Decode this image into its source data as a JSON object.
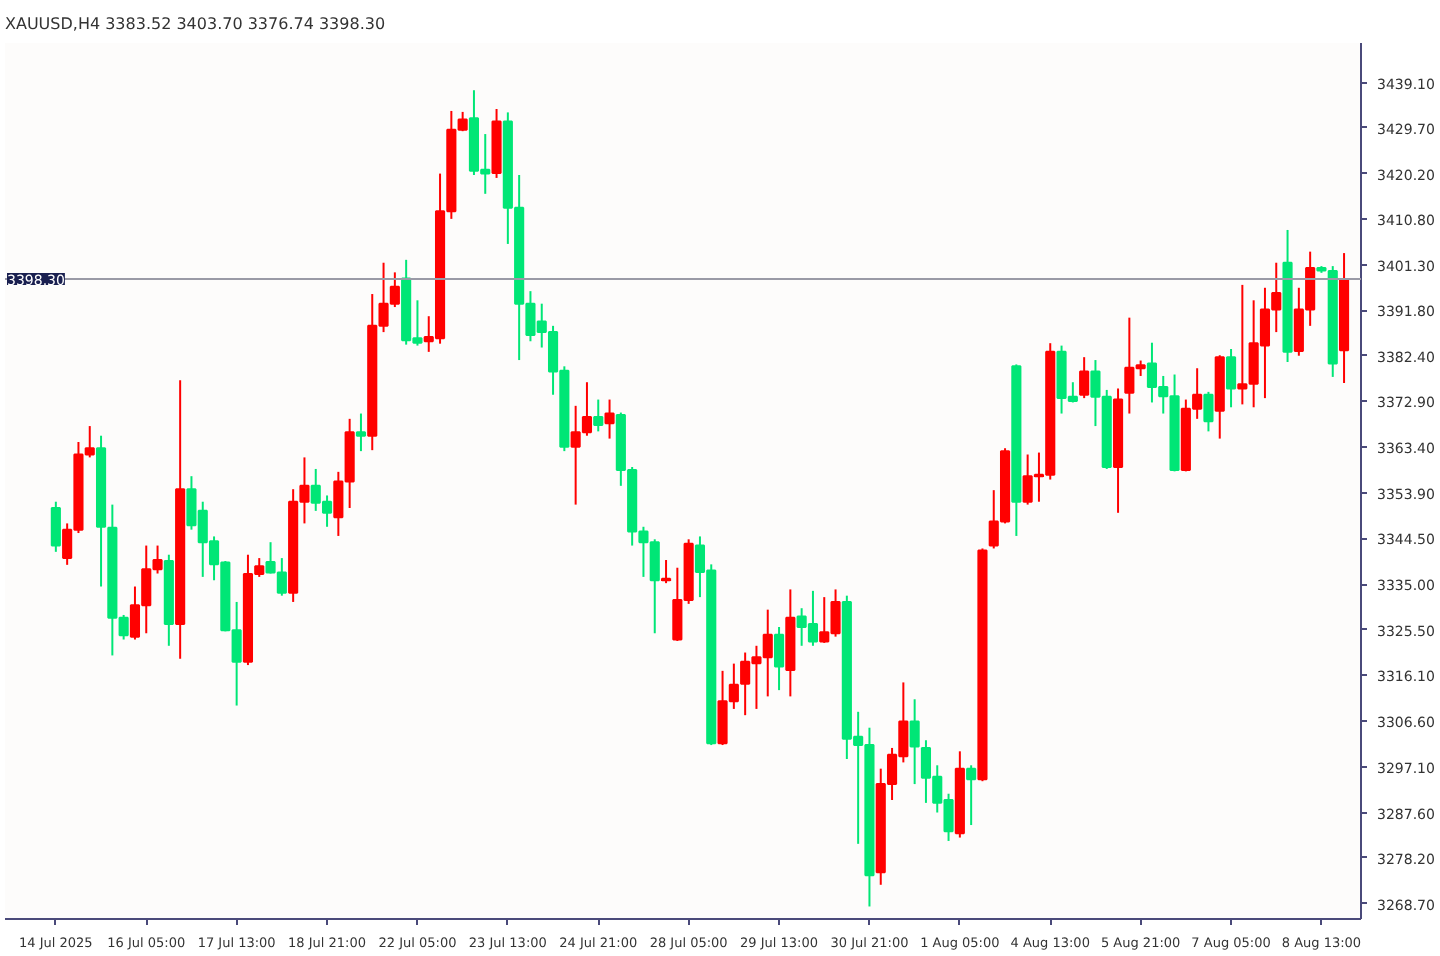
{
  "chart_data": {
    "type": "candlestick",
    "title": "XAUUSD,H4 3383.52 3403.70 3376.74 3398.30",
    "categories": [
      "14 Jul 2025",
      null,
      null,
      null,
      null,
      null,
      null,
      null,
      "16 Jul 05:00",
      null,
      null,
      null,
      null,
      null,
      null,
      null,
      "17 Jul 13:00",
      null,
      null,
      null,
      null,
      null,
      null,
      null,
      "18 Jul 21:00",
      null,
      null,
      null,
      null,
      null,
      null,
      null,
      "22 Jul 05:00",
      null,
      null,
      null,
      null,
      null,
      null,
      null,
      "23 Jul 13:00",
      null,
      null,
      null,
      null,
      null,
      null,
      null,
      "24 Jul 21:00",
      null,
      null,
      null,
      null,
      null,
      null,
      null,
      "28 Jul 05:00",
      null,
      null,
      null,
      null,
      null,
      null,
      null,
      "29 Jul 13:00",
      null,
      null,
      null,
      null,
      null,
      null,
      null,
      "30 Jul 21:00",
      null,
      null,
      null,
      null,
      null,
      null,
      null,
      "1 Aug 05:00",
      null,
      null,
      null,
      null,
      null,
      null,
      null,
      "4 Aug 13:00",
      null,
      null,
      null,
      null,
      null,
      null,
      null,
      "5 Aug 21:00",
      null,
      null,
      null,
      null,
      null,
      null,
      null,
      "7 Aug 05:00",
      null,
      null,
      null,
      null,
      null,
      null,
      null,
      "8 Aug 13:00",
      null,
      null
    ],
    "ohlc": [
      [
        3350.8,
        3352.1,
        3341.7,
        3343.0
      ],
      [
        3340.4,
        3347.6,
        3339.0,
        3346.3
      ],
      [
        3346.3,
        3364.5,
        3345.6,
        3361.9
      ],
      [
        3361.9,
        3367.8,
        3361.3,
        3363.2
      ],
      [
        3363.2,
        3365.8,
        3334.5,
        3346.9
      ],
      [
        3346.7,
        3351.5,
        3320.2,
        3328.0
      ],
      [
        3328.0,
        3328.6,
        3323.5,
        3324.4
      ],
      [
        3324.1,
        3334.5,
        3323.5,
        3330.6
      ],
      [
        3330.6,
        3343.0,
        3324.8,
        3338.1
      ],
      [
        3338.1,
        3343.0,
        3337.2,
        3340.0
      ],
      [
        3339.8,
        3341.1,
        3322.2,
        3326.7
      ],
      [
        3326.7,
        3377.3,
        3319.5,
        3354.7
      ],
      [
        3354.7,
        3357.4,
        3346.3,
        3347.2
      ],
      [
        3350.2,
        3352.1,
        3336.5,
        3343.7
      ],
      [
        3343.9,
        3344.9,
        3335.8,
        3339.1
      ],
      [
        3339.5,
        3339.8,
        3325.2,
        3325.4
      ],
      [
        3325.4,
        3331.3,
        3309.8,
        3318.9
      ],
      [
        3318.9,
        3341.1,
        3318.2,
        3337.1
      ],
      [
        3337.1,
        3340.4,
        3336.5,
        3338.7
      ],
      [
        3339.6,
        3343.7,
        3337.2,
        3337.4
      ],
      [
        3337.4,
        3340.4,
        3332.6,
        3333.2
      ],
      [
        3333.2,
        3354.7,
        3331.3,
        3352.1
      ],
      [
        3352.1,
        3361.3,
        3347.6,
        3355.4
      ],
      [
        3355.4,
        3358.9,
        3350.2,
        3351.9
      ],
      [
        3352.1,
        3353.4,
        3346.9,
        3349.8
      ],
      [
        3348.9,
        3358.3,
        3345.0,
        3356.3
      ],
      [
        3356.3,
        3369.3,
        3350.8,
        3366.5
      ],
      [
        3366.5,
        3370.4,
        3362.6,
        3365.8
      ],
      [
        3365.8,
        3395.2,
        3362.8,
        3388.6
      ],
      [
        3388.6,
        3401.7,
        3387.3,
        3393.2
      ],
      [
        3393.2,
        3399.7,
        3392.5,
        3396.7
      ],
      [
        3398.4,
        3402.3,
        3384.7,
        3385.6
      ],
      [
        3386.0,
        3393.9,
        3384.5,
        3385.1
      ],
      [
        3385.4,
        3390.6,
        3383.2,
        3386.3
      ],
      [
        3386.0,
        3420.2,
        3384.9,
        3412.4
      ],
      [
        3412.4,
        3433.2,
        3410.8,
        3429.3
      ],
      [
        3429.3,
        3433.0,
        3429.0,
        3431.4
      ],
      [
        3431.7,
        3437.5,
        3419.9,
        3420.8
      ],
      [
        3421.0,
        3428.4,
        3416.0,
        3420.2
      ],
      [
        3420.3,
        3433.6,
        3419.3,
        3431.0
      ],
      [
        3431.0,
        3432.9,
        3405.6,
        3413.1
      ],
      [
        3413.1,
        3419.9,
        3381.5,
        3393.2
      ],
      [
        3393.2,
        3395.8,
        3385.4,
        3386.7
      ],
      [
        3389.5,
        3393.2,
        3384.1,
        3387.3
      ],
      [
        3387.3,
        3388.6,
        3374.3,
        3379.1
      ],
      [
        3379.3,
        3380.2,
        3362.6,
        3363.5
      ],
      [
        3363.5,
        3372.0,
        3351.5,
        3366.5
      ],
      [
        3366.5,
        3376.9,
        3365.8,
        3369.7
      ],
      [
        3369.7,
        3373.3,
        3366.7,
        3368.0
      ],
      [
        3368.4,
        3373.3,
        3365.2,
        3370.4
      ],
      [
        3370.1,
        3370.6,
        3355.4,
        3358.7
      ],
      [
        3358.7,
        3359.3,
        3343.0,
        3345.9
      ],
      [
        3345.9,
        3346.9,
        3336.5,
        3343.7
      ],
      [
        3343.7,
        3344.3,
        3324.8,
        3335.8
      ],
      [
        3335.8,
        3340.0,
        3335.2,
        3336.1
      ],
      [
        3323.5,
        3338.4,
        3323.2,
        3331.7
      ],
      [
        3331.7,
        3344.3,
        3330.9,
        3343.4
      ],
      [
        3343.0,
        3344.9,
        3332.3,
        3337.5
      ],
      [
        3337.8,
        3339.1,
        3301.6,
        3302.0
      ],
      [
        3302.0,
        3317.0,
        3301.6,
        3310.7
      ],
      [
        3310.7,
        3318.5,
        3309.1,
        3314.1
      ],
      [
        3314.3,
        3320.8,
        3307.8,
        3318.9
      ],
      [
        3318.6,
        3322.2,
        3309.1,
        3319.8
      ],
      [
        3319.8,
        3329.7,
        3311.7,
        3324.5
      ],
      [
        3324.5,
        3326.1,
        3313.0,
        3317.9
      ],
      [
        3317.2,
        3333.9,
        3311.7,
        3328.0
      ],
      [
        3328.3,
        3330.0,
        3322.2,
        3326.1
      ],
      [
        3326.7,
        3333.6,
        3322.2,
        3323.1
      ],
      [
        3323.1,
        3332.3,
        3322.8,
        3325.0
      ],
      [
        3324.8,
        3333.9,
        3324.1,
        3331.3
      ],
      [
        3331.3,
        3332.6,
        3298.7,
        3302.9
      ],
      [
        3303.3,
        3308.5,
        3281.1,
        3301.6
      ],
      [
        3301.6,
        3305.2,
        3268.1,
        3274.6
      ],
      [
        3275.2,
        3296.7,
        3272.6,
        3293.5
      ],
      [
        3293.5,
        3301.0,
        3290.2,
        3299.6
      ],
      [
        3299.3,
        3314.6,
        3298.0,
        3306.5
      ],
      [
        3306.5,
        3311.1,
        3293.5,
        3301.3
      ],
      [
        3301.0,
        3302.6,
        3289.6,
        3294.8
      ],
      [
        3295.0,
        3297.4,
        3287.6,
        3289.6
      ],
      [
        3290.2,
        3291.5,
        3281.7,
        3283.7
      ],
      [
        3283.3,
        3300.3,
        3282.4,
        3296.7
      ],
      [
        3296.7,
        3297.4,
        3285.0,
        3294.5
      ],
      [
        3294.5,
        3342.4,
        3294.1,
        3342.0
      ],
      [
        3343.0,
        3354.5,
        3342.4,
        3348.0
      ],
      [
        3348.0,
        3363.2,
        3347.6,
        3362.6
      ],
      [
        3380.2,
        3380.6,
        3345.0,
        3352.1
      ],
      [
        3352.1,
        3361.9,
        3351.5,
        3357.4
      ],
      [
        3357.4,
        3362.3,
        3352.1,
        3357.7
      ],
      [
        3357.7,
        3385.0,
        3356.7,
        3383.2
      ],
      [
        3383.2,
        3384.5,
        3370.4,
        3373.6
      ],
      [
        3373.9,
        3376.9,
        3372.7,
        3373.0
      ],
      [
        3374.3,
        3382.1,
        3373.6,
        3379.1
      ],
      [
        3379.1,
        3381.5,
        3367.8,
        3373.9
      ],
      [
        3373.9,
        3375.3,
        3358.9,
        3359.3
      ],
      [
        3359.3,
        3375.6,
        3349.8,
        3373.3
      ],
      [
        3374.7,
        3390.3,
        3370.4,
        3379.9
      ],
      [
        3379.8,
        3381.4,
        3378.2,
        3380.4
      ],
      [
        3380.8,
        3385.1,
        3372.7,
        3375.9
      ],
      [
        3375.9,
        3378.2,
        3370.4,
        3374.0
      ],
      [
        3374.0,
        3378.5,
        3358.4,
        3358.7
      ],
      [
        3358.7,
        3373.3,
        3358.4,
        3371.4
      ],
      [
        3371.4,
        3379.8,
        3369.3,
        3374.3
      ],
      [
        3374.3,
        3374.9,
        3366.7,
        3368.8
      ],
      [
        3371.0,
        3382.5,
        3365.2,
        3382.1
      ],
      [
        3382.1,
        3383.8,
        3371.7,
        3375.6
      ],
      [
        3375.6,
        3397.1,
        3372.3,
        3376.5
      ],
      [
        3376.6,
        3393.9,
        3371.7,
        3385.0
      ],
      [
        3384.5,
        3396.5,
        3373.6,
        3392.0
      ],
      [
        3392.0,
        3401.7,
        3387.3,
        3395.4
      ],
      [
        3401.7,
        3408.5,
        3381.1,
        3383.2
      ],
      [
        3383.4,
        3396.5,
        3382.4,
        3392.0
      ],
      [
        3392.0,
        3404.0,
        3388.6,
        3400.6
      ],
      [
        3400.6,
        3401.0,
        3399.6,
        3400.1
      ],
      [
        3400.0,
        3401.0,
        3378.0,
        3380.8
      ],
      [
        3383.52,
        3403.7,
        3376.74,
        3398.3
      ]
    ],
    "colors": [
      "#00e676",
      "#ff0000",
      "#ff0000",
      "#ff0000",
      "#00e676",
      "#00e676",
      "#00e676",
      "#ff0000",
      "#ff0000",
      "#ff0000",
      "#00e676",
      "#ff0000",
      "#00e676",
      "#00e676",
      "#00e676",
      "#00e676",
      "#00e676",
      "#ff0000",
      "#ff0000",
      "#00e676",
      "#00e676",
      "#ff0000",
      "#ff0000",
      "#00e676",
      "#00e676",
      "#ff0000",
      "#ff0000",
      "#00e676",
      "#ff0000",
      "#ff0000",
      "#ff0000",
      "#00e676",
      "#00e676",
      "#ff0000",
      "#ff0000",
      "#ff0000",
      "#ff0000",
      "#00e676",
      "#00e676",
      "#ff0000",
      "#00e676",
      "#00e676",
      "#00e676",
      "#00e676",
      "#00e676",
      "#00e676",
      "#ff0000",
      "#ff0000",
      "#00e676",
      "#ff0000",
      "#00e676",
      "#00e676",
      "#00e676",
      "#00e676",
      "#ff0000",
      "#ff0000",
      "#ff0000",
      "#00e676",
      "#00e676",
      "#ff0000",
      "#ff0000",
      "#ff0000",
      "#ff0000",
      "#ff0000",
      "#00e676",
      "#ff0000",
      "#00e676",
      "#00e676",
      "#ff0000",
      "#ff0000",
      "#00e676",
      "#00e676",
      "#00e676",
      "#ff0000",
      "#ff0000",
      "#ff0000",
      "#00e676",
      "#00e676",
      "#00e676",
      "#00e676",
      "#ff0000",
      "#00e676",
      "#ff0000",
      "#ff0000",
      "#ff0000",
      "#00e676",
      "#ff0000",
      "#ff0000",
      "#ff0000",
      "#00e676",
      "#00e676",
      "#ff0000",
      "#00e676",
      "#00e676",
      "#ff0000",
      "#ff0000",
      "#ff0000",
      "#00e676",
      "#00e676",
      "#00e676",
      "#ff0000",
      "#ff0000",
      "#00e676",
      "#ff0000",
      "#00e676",
      "#ff0000",
      "#ff0000",
      "#ff0000",
      "#ff0000",
      "#00e676",
      "#ff0000",
      "#ff0000",
      "#00e676",
      "#00e676",
      "#ff0000"
    ],
    "ylim": [
      3265.5,
      3447.3
    ],
    "yticks": [
      {
        "value": 3268.7,
        "label": "3268.70"
      },
      {
        "value": 3278.2,
        "label": "3278.20"
      },
      {
        "value": 3287.6,
        "label": "3287.60"
      },
      {
        "value": 3297.1,
        "label": "3297.10"
      },
      {
        "value": 3306.6,
        "label": "3306.60"
      },
      {
        "value": 3316.1,
        "label": "3316.10"
      },
      {
        "value": 3325.5,
        "label": "3325.50"
      },
      {
        "value": 3335.0,
        "label": "3335.00"
      },
      {
        "value": 3344.5,
        "label": "3344.50"
      },
      {
        "value": 3353.9,
        "label": "3353.90"
      },
      {
        "value": 3363.4,
        "label": "3363.40"
      },
      {
        "value": 3372.9,
        "label": "3372.90"
      },
      {
        "value": 3382.4,
        "label": "3382.40"
      },
      {
        "value": 3391.8,
        "label": "3391.80"
      },
      {
        "value": 3401.3,
        "label": "3401.30"
      },
      {
        "value": 3410.8,
        "label": "3410.80"
      },
      {
        "value": 3420.2,
        "label": "3420.20"
      },
      {
        "value": 3429.7,
        "label": "3429.70"
      },
      {
        "value": 3439.1,
        "label": "3439.10"
      }
    ],
    "ref_lines": [
      {
        "axis": "y",
        "value": 3398.3,
        "label": "3398.30",
        "color": "#9a9aa6"
      }
    ]
  }
}
